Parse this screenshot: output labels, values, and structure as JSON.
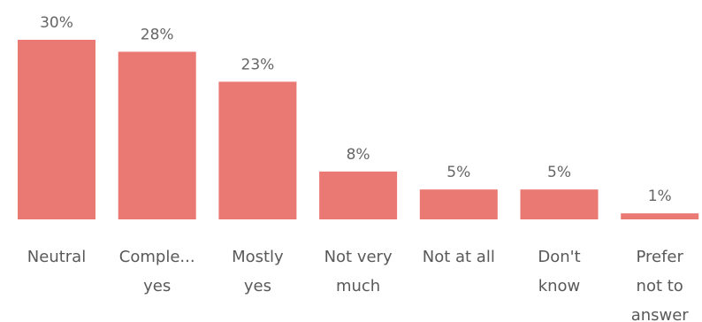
{
  "chart_data": {
    "type": "bar",
    "title": "",
    "xlabel": "",
    "ylabel": "",
    "categories": [
      [
        "Neutral"
      ],
      [
        "Comple...",
        "yes"
      ],
      [
        "Mostly",
        "yes"
      ],
      [
        "Not very",
        "much"
      ],
      [
        "Not at all"
      ],
      [
        "Don't",
        "know"
      ],
      [
        "Prefer",
        "not to",
        "answer"
      ]
    ],
    "values": [
      30,
      28,
      23,
      8,
      5,
      5,
      1
    ],
    "value_labels": [
      "30%",
      "28%",
      "23%",
      "8%",
      "5%",
      "5%",
      "1%"
    ],
    "unit": "%",
    "ylim": [
      0,
      30
    ],
    "grid": false,
    "legend": "none",
    "bar_color": "#ea7873"
  }
}
